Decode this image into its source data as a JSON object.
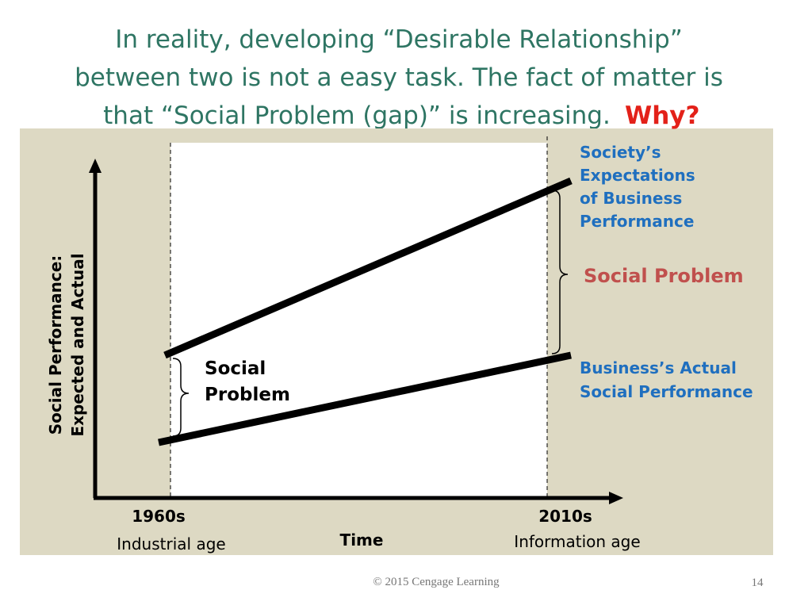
{
  "title": {
    "lines": [
      "In reality, developing “Desirable Relationship”",
      "between two is not a easy task. The fact of matter is",
      "that “Social Problem (gap)” is increasing."
    ],
    "emphasis": "Why?"
  },
  "diagram": {
    "y_axis_label": [
      "Social Performance:",
      "Expected and Actual"
    ],
    "x_axis_label": "Time",
    "start": {
      "period": "1960s",
      "era": "Industrial age"
    },
    "end": {
      "period": "2010s",
      "era": "Information age"
    },
    "gap_start_label": [
      "Social",
      "Problem"
    ],
    "gap_end_label": "Social Problem",
    "expectations_label": [
      "Society’s",
      "Expectations",
      "of Business",
      "Performance"
    ],
    "actual_label": [
      "Business’s Actual",
      "Social Performance"
    ]
  },
  "footer": {
    "copyright": "© 2015 Cengage Learning",
    "page": "14"
  }
}
